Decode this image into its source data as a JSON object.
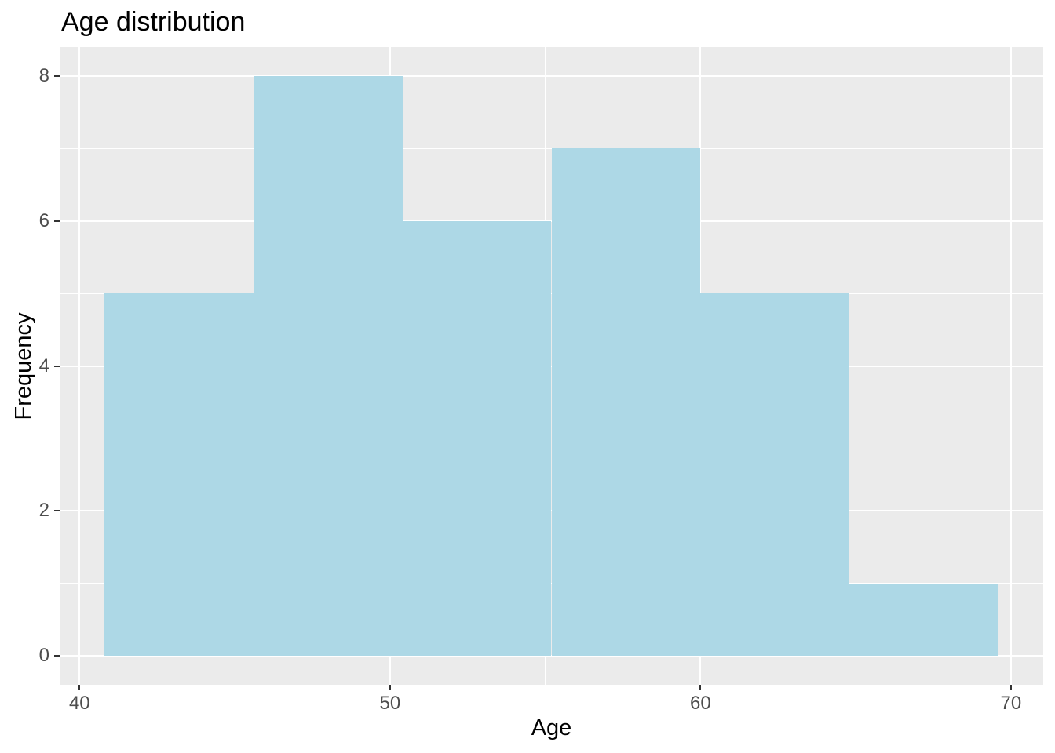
{
  "chart_data": {
    "type": "histogram",
    "title": "Age distribution",
    "xlabel": "Age",
    "ylabel": "Frequency",
    "bin_edges": [
      40.8,
      45.6,
      50.4,
      55.2,
      60.0,
      64.8,
      69.6
    ],
    "counts": [
      5,
      8,
      6,
      7,
      5,
      1
    ],
    "x_ticks": [
      40,
      50,
      60,
      70
    ],
    "x_tick_labels": [
      "40",
      "50",
      "60",
      "70"
    ],
    "x_minor_gridlines": [
      45,
      55,
      65
    ],
    "y_ticks": [
      0,
      2,
      4,
      6,
      8
    ],
    "y_tick_labels": [
      "0",
      "2",
      "4",
      "6",
      "8"
    ],
    "y_minor_gridlines": [
      1,
      3,
      5,
      7
    ],
    "xlim": [
      39.36,
      71.04
    ],
    "ylim": [
      -0.4,
      8.4
    ],
    "grid": true,
    "legend": "none",
    "colors": {
      "bar_fill": "#ADD8E6",
      "panel_background": "#EBEBEB",
      "gridline": "#FFFFFF",
      "tick_mark": "#333333",
      "tick_label": "#4D4D4D",
      "title_text": "#000000",
      "figure_background": "#FFFFFF"
    }
  }
}
